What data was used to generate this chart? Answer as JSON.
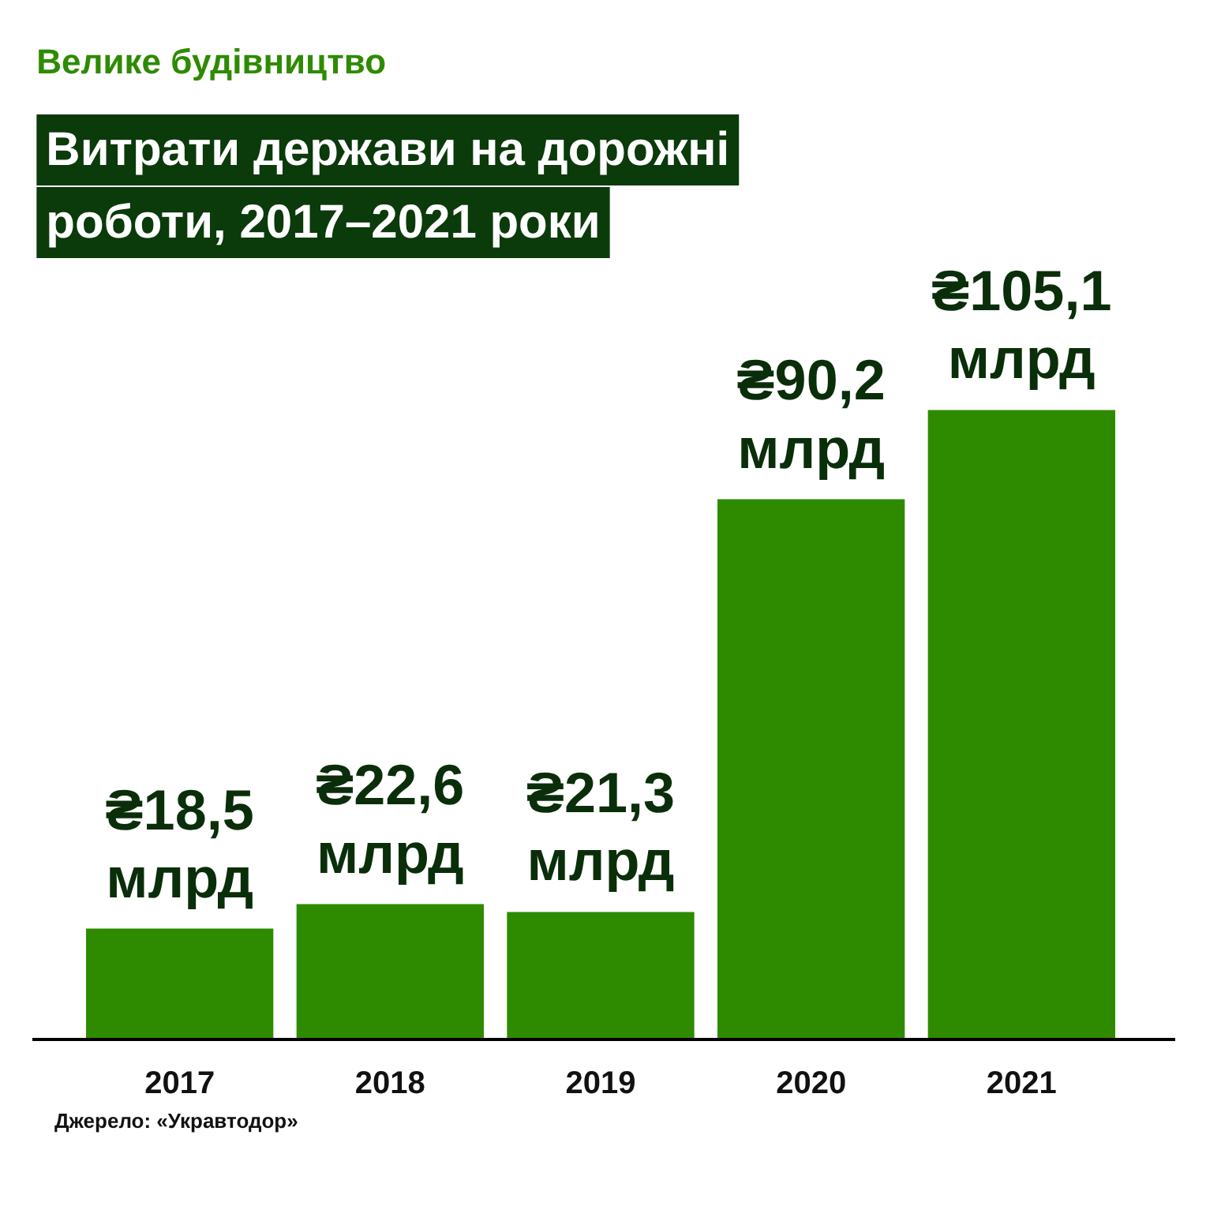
{
  "chart_data": {
    "type": "bar",
    "subtitle": "Велике будівництво",
    "title": "Витрати держави на дорожні роботи, 2017–2021 роки",
    "categories": [
      "2017",
      "2018",
      "2019",
      "2020",
      "2021"
    ],
    "values": [
      18.5,
      22.6,
      21.3,
      90.2,
      105.1
    ],
    "color": "#2e8b00",
    "value_labels": [
      "₴18,5 млрд",
      "₴22,6 млрд",
      "₴21,3 млрд",
      "₴90,2 млрд",
      "₴105,1 млрд"
    ],
    "annotations": [
      "Джерело: «Укравтодор»"
    ],
    "grid": false
  }
}
